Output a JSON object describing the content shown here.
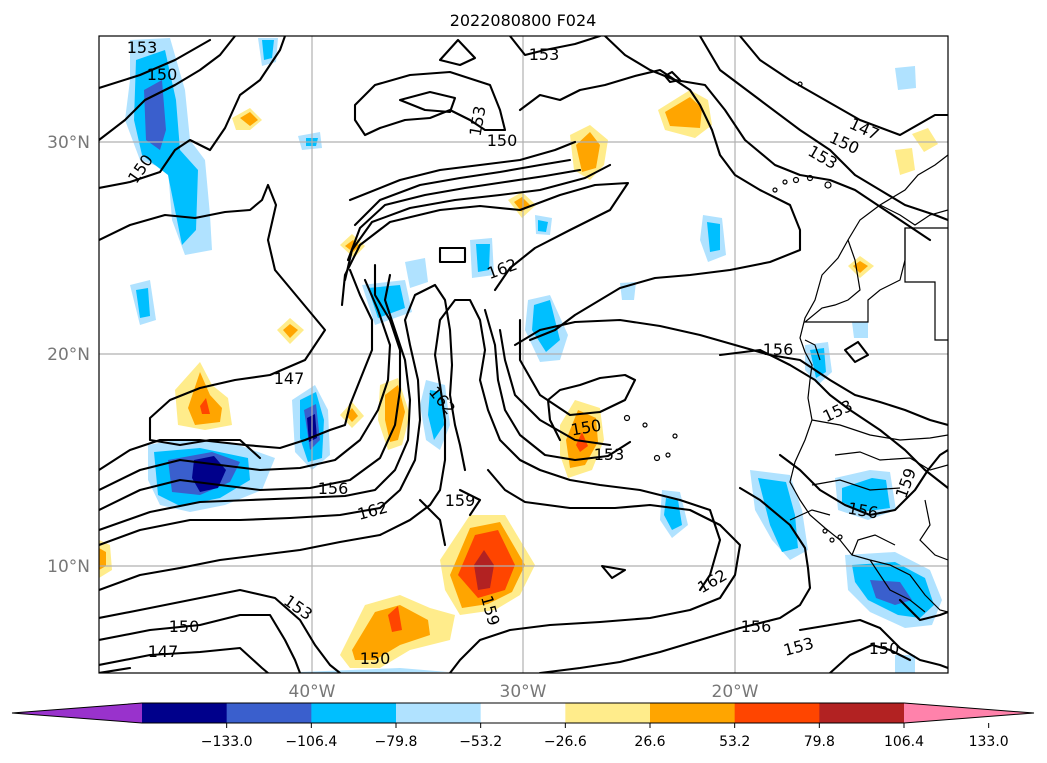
{
  "title": "2022080800 F024",
  "lat_labels": [
    "30°N",
    "20°N",
    "10°N"
  ],
  "lon_labels": [
    "40°W",
    "30°W",
    "20°W"
  ],
  "colorbar": {
    "ticks": [
      "−133.0",
      "−106.4",
      "−79.8",
      "−53.2",
      "−26.6",
      "26.6",
      "53.2",
      "79.8",
      "106.4",
      "133.0"
    ],
    "colors": [
      "#9932cc",
      "#00008b",
      "#3a5fcd",
      "#00bfff",
      "#b0e2ff",
      "#ffffff",
      "#ffec8b",
      "#ffa500",
      "#ff4500",
      "#b22222",
      "#ff82ab"
    ]
  },
  "contour_labels": [
    "153",
    "150",
    "150",
    "153",
    "150",
    "153",
    "162",
    "147",
    "150",
    "153",
    "147",
    "162",
    "156",
    "162",
    "159",
    "150",
    "153",
    "156",
    "153",
    "159",
    "156",
    "162",
    "159",
    "153",
    "156",
    "153",
    "150",
    "150",
    "147",
    "150"
  ],
  "colors": {
    "shading_scale": [
      "#b0e2ff",
      "#00bfff",
      "#3a5fcd",
      "#00008b",
      "#ffec8b",
      "#ffa500",
      "#ff4500",
      "#b22222"
    ]
  }
}
